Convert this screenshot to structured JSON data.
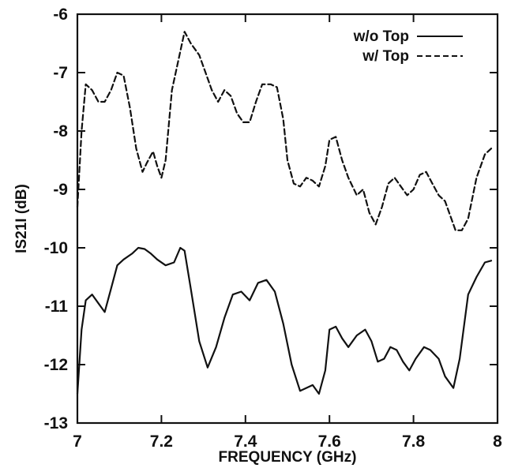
{
  "chart_data": {
    "type": "line",
    "title": "",
    "xlabel": "FREQUENCY (GHz)",
    "ylabel": "IS21I (dB)",
    "xlim": [
      7,
      8
    ],
    "ylim": [
      -13,
      -6
    ],
    "x_ticks": [
      7,
      7.2,
      7.4,
      7.6,
      7.8,
      8
    ],
    "x_tick_labels": [
      "7",
      "7.2",
      "7.4",
      "7.6",
      "7.8",
      "8"
    ],
    "y_ticks": [
      -6,
      -7,
      -8,
      -9,
      -10,
      -11,
      -12,
      -13
    ],
    "y_tick_labels": [
      "-6",
      "-7",
      "-8",
      "-9",
      "-10",
      "-11",
      "-12",
      "-13"
    ],
    "grid": false,
    "legend_position": "top-right",
    "series": [
      {
        "name": "w/o Top",
        "style": "solid",
        "color": "#111111",
        "x": [
          7.0,
          7.01,
          7.02,
          7.035,
          7.05,
          7.065,
          7.08,
          7.095,
          7.11,
          7.13,
          7.145,
          7.16,
          7.175,
          7.19,
          7.21,
          7.23,
          7.245,
          7.255,
          7.27,
          7.29,
          7.31,
          7.33,
          7.35,
          7.37,
          7.39,
          7.41,
          7.43,
          7.45,
          7.47,
          7.49,
          7.51,
          7.53,
          7.545,
          7.56,
          7.575,
          7.59,
          7.6,
          7.615,
          7.63,
          7.645,
          7.665,
          7.685,
          7.7,
          7.715,
          7.73,
          7.745,
          7.76,
          7.775,
          7.79,
          7.805,
          7.825,
          7.84,
          7.86,
          7.875,
          7.895,
          7.91,
          7.93,
          7.95,
          7.97,
          7.985
        ],
        "values": [
          -12.5,
          -11.4,
          -10.9,
          -10.8,
          -10.95,
          -11.1,
          -10.7,
          -10.3,
          -10.2,
          -10.1,
          -10.0,
          -10.02,
          -10.1,
          -10.2,
          -10.3,
          -10.25,
          -10.0,
          -10.05,
          -10.7,
          -11.6,
          -12.05,
          -11.7,
          -11.2,
          -10.8,
          -10.75,
          -10.9,
          -10.6,
          -10.55,
          -10.75,
          -11.3,
          -12.0,
          -12.45,
          -12.4,
          -12.35,
          -12.5,
          -12.1,
          -11.4,
          -11.35,
          -11.55,
          -11.7,
          -11.5,
          -11.4,
          -11.6,
          -11.95,
          -11.9,
          -11.7,
          -11.75,
          -11.95,
          -12.1,
          -11.9,
          -11.7,
          -11.75,
          -11.9,
          -12.2,
          -12.4,
          -11.9,
          -10.8,
          -10.5,
          -10.25,
          -10.22
        ]
      },
      {
        "name": "w/ Top",
        "style": "dashed",
        "color": "#111111",
        "x": [
          7.0,
          7.01,
          7.02,
          7.035,
          7.05,
          7.065,
          7.08,
          7.095,
          7.11,
          7.125,
          7.14,
          7.155,
          7.165,
          7.18,
          7.19,
          7.2,
          7.21,
          7.225,
          7.24,
          7.255,
          7.27,
          7.29,
          7.305,
          7.32,
          7.335,
          7.35,
          7.365,
          7.38,
          7.395,
          7.41,
          7.425,
          7.44,
          7.46,
          7.475,
          7.49,
          7.5,
          7.515,
          7.53,
          7.545,
          7.56,
          7.575,
          7.59,
          7.6,
          7.615,
          7.63,
          7.645,
          7.665,
          7.68,
          7.695,
          7.71,
          7.725,
          7.74,
          7.755,
          7.77,
          7.785,
          7.8,
          7.815,
          7.83,
          7.845,
          7.86,
          7.875,
          7.89,
          7.9,
          7.915,
          7.93,
          7.95,
          7.97,
          7.985
        ],
        "values": [
          -9.3,
          -8.0,
          -7.2,
          -7.3,
          -7.5,
          -7.5,
          -7.3,
          -7.0,
          -7.05,
          -7.6,
          -8.3,
          -8.7,
          -8.55,
          -8.35,
          -8.6,
          -8.8,
          -8.5,
          -7.3,
          -6.8,
          -6.3,
          -6.5,
          -6.7,
          -7.0,
          -7.3,
          -7.5,
          -7.3,
          -7.4,
          -7.7,
          -7.85,
          -7.85,
          -7.5,
          -7.2,
          -7.2,
          -7.25,
          -7.8,
          -8.5,
          -8.9,
          -8.95,
          -8.8,
          -8.85,
          -8.95,
          -8.6,
          -8.15,
          -8.1,
          -8.5,
          -8.8,
          -9.1,
          -9.0,
          -9.4,
          -9.6,
          -9.3,
          -8.9,
          -8.8,
          -8.95,
          -9.1,
          -9.0,
          -8.75,
          -8.7,
          -8.9,
          -9.1,
          -9.2,
          -9.5,
          -9.7,
          -9.7,
          -9.5,
          -8.8,
          -8.4,
          -8.3
        ]
      }
    ]
  }
}
